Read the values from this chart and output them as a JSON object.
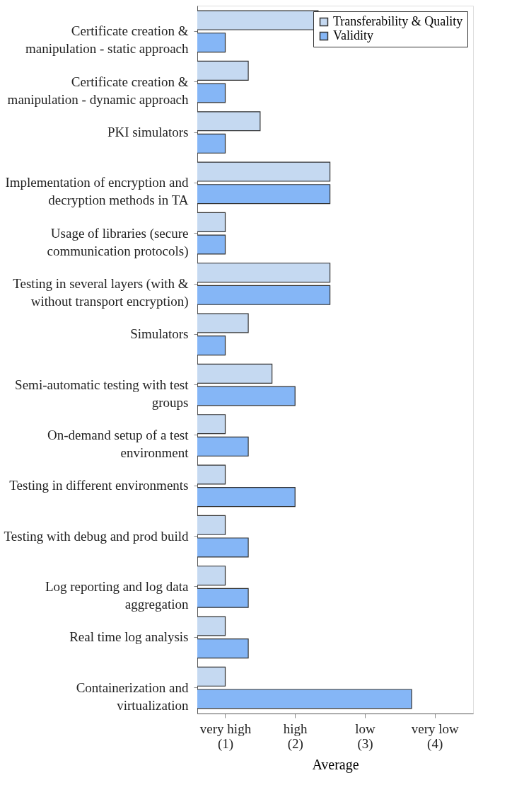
{
  "chart_data": {
    "type": "bar",
    "orientation": "horizontal",
    "xlabel": "Average",
    "categories": [
      "Certificate creation & manipulation - static approach",
      "Certificate creation & manipulation - dynamic approach",
      "PKI simulators",
      "Implementation of encryption and decryption methods in TA",
      "Usage of libraries (secure communication protocols)",
      "Testing in several layers (with & without transport encryption)",
      "Simulators",
      "Semi-automatic testing with test groups",
      "On-demand setup of a test environment",
      "Testing in different environments",
      "Testing with debug and prod build",
      "Log reporting and log data aggregation",
      "Real time log analysis",
      "Containerization and virtualization"
    ],
    "series": [
      {
        "name": "Transferability & Quality",
        "color": "#c5d9f1",
        "values": [
          2.33,
          1.33,
          1.5,
          2.5,
          1,
          2.5,
          1.33,
          1.67,
          1,
          1,
          1,
          1,
          1,
          1
        ]
      },
      {
        "name": "Validity",
        "color": "#85b6f6",
        "values": [
          1,
          1,
          1,
          2.5,
          1,
          2.5,
          1,
          2,
          1.33,
          2,
          1.33,
          1.33,
          1.33,
          3.67
        ]
      }
    ],
    "xlim": [
      0.6,
      4.55
    ],
    "xticks": [
      {
        "value": 1,
        "label": "very high (1)"
      },
      {
        "value": 2,
        "label": "high (2)"
      },
      {
        "value": 3,
        "label": "low (3)"
      },
      {
        "value": 4,
        "label": "very low (4)"
      }
    ],
    "legend": "top right",
    "grid": false
  }
}
